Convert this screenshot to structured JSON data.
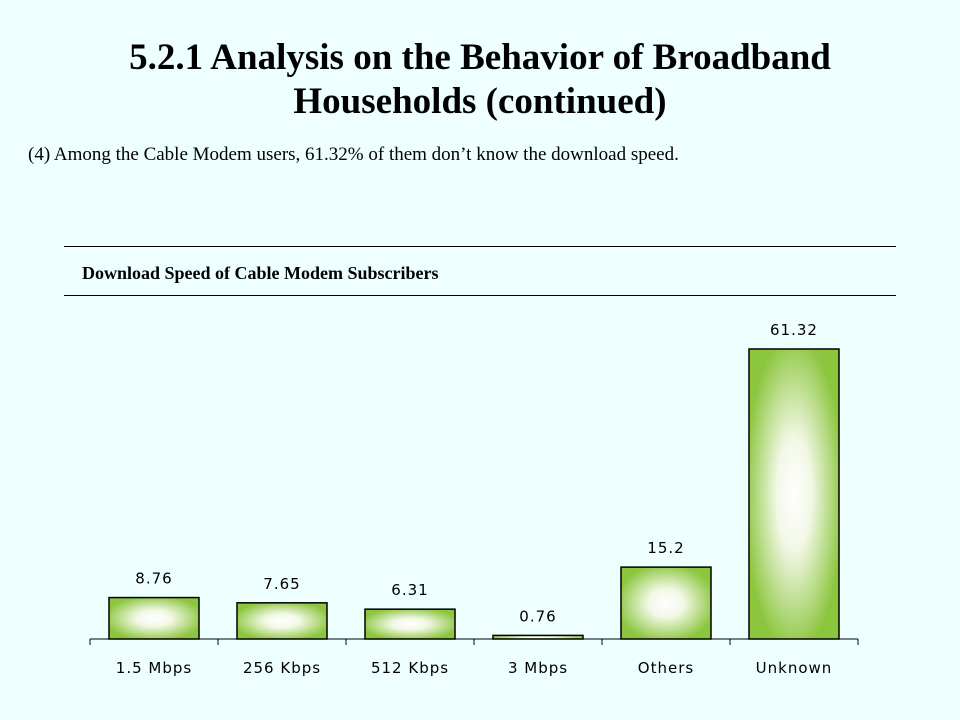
{
  "page": {
    "title_line1": "5.2.1 Analysis on the Behavior of Broadband",
    "title_line2": "Households (continued)",
    "subtitle": "(4) Among the Cable Modem users, 61.32% of them don’t know the download speed."
  },
  "chart_data": {
    "type": "bar",
    "title": "Download Speed of Cable Modem Subscribers",
    "categories": [
      "1.5 Mbps",
      "256 Kbps",
      "512 Kbps",
      "3 Mbps",
      "Others",
      "Unknown"
    ],
    "values": [
      8.76,
      7.65,
      6.31,
      0.76,
      15.2,
      61.32
    ],
    "value_labels": [
      "8.76",
      "7.65",
      "6.31",
      "0.76",
      "15.2",
      "61.32"
    ],
    "xlabel": "",
    "ylabel": "",
    "ylim": [
      0,
      70
    ],
    "grid": false,
    "legend": "none",
    "colors": {
      "bar_dark": "#8cc63f",
      "bar_light": "#ffffff",
      "bar_outline": "#000000",
      "background": "#eeffff"
    }
  }
}
